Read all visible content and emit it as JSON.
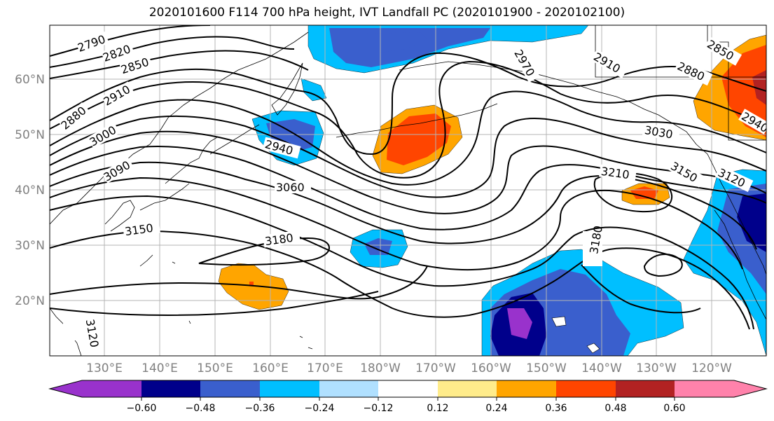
{
  "title": "2020101600 F114 700 hPa height, IVT Landfall PC (2020101900 - 2020102100)",
  "lat_labels": [
    "60°N",
    "50°N",
    "40°N",
    "30°N",
    "20°N"
  ],
  "lon_labels": [
    "130°E",
    "140°E",
    "150°E",
    "160°E",
    "170°E",
    "180°W",
    "170°W",
    "160°W",
    "150°W",
    "140°W",
    "130°W",
    "120°W"
  ],
  "contour_labels": [
    "2790",
    "2820",
    "2850",
    "2910",
    "2880",
    "3000",
    "3090",
    "2940",
    "3060",
    "3150",
    "3180",
    "3120",
    "2970",
    "2910",
    "2880",
    "2850",
    "2940",
    "3030",
    "3150",
    "3120",
    "3210",
    "3180"
  ],
  "colorbar": {
    "ticks": [
      "−0.60",
      "−0.48",
      "−0.36",
      "−0.24",
      "−0.12",
      "0.12",
      "0.24",
      "0.36",
      "0.48",
      "0.60"
    ],
    "colors": [
      "#9932cc",
      "#00008b",
      "#3a5fcd",
      "#00bfff",
      "#b0e0ff",
      "#ffffff",
      "#ffec8b",
      "#ffa500",
      "#ff4500",
      "#b22222",
      "#ff82ab"
    ]
  },
  "chart_data": {
    "type": "heatmap",
    "title": "2020101600 F114 700 hPa height, IVT Landfall PC (2020101900 - 2020102100)",
    "field_shaded": "IVT Landfall PC",
    "field_contoured": "700 hPa height",
    "contour_values": [
      2790,
      2820,
      2850,
      2880,
      2910,
      2940,
      2970,
      3000,
      3030,
      3060,
      3090,
      3120,
      3150,
      3180,
      3210
    ],
    "colorbar_levels": [
      -0.6,
      -0.48,
      -0.36,
      -0.24,
      -0.12,
      0.12,
      0.24,
      0.36,
      0.48,
      0.6
    ],
    "lat_range": [
      "~10°N",
      "~70°N"
    ],
    "lon_range": [
      "~120°E",
      "~110°W"
    ],
    "grid": true
  }
}
